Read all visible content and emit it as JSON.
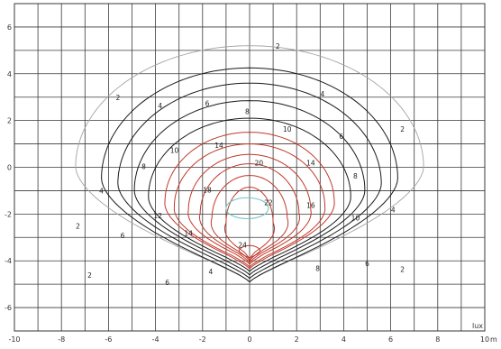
{
  "chart_data": {
    "type": "contour",
    "x_unit": "m",
    "value_unit": "lux",
    "xlim": [
      -10,
      10
    ],
    "ylim": [
      -7,
      7
    ],
    "grid": true,
    "xticks": [
      -10,
      -8,
      -6,
      -4,
      -2,
      0,
      2,
      4,
      6,
      8,
      10
    ],
    "yticks": [
      6,
      4,
      2,
      0,
      -2,
      -4,
      -6
    ],
    "source": [
      0,
      -4
    ],
    "levels": [
      2,
      4,
      6,
      8,
      10,
      12,
      14,
      16,
      18,
      20,
      22,
      24
    ],
    "level_colors": {
      "2": "#a3a3a3",
      "4": "#1a1a1a",
      "6": "#1a1a1a",
      "8": "#1a1a1a",
      "10": "#1a1a1a",
      "12": "#c0392b",
      "14": "#c0392b",
      "16": "#c0392b",
      "18": "#c0392b",
      "20": "#c0392b",
      "22": "#c0392b",
      "24": "#c0392b",
      "inner": "#6dc7c2"
    },
    "contours": [
      {
        "level": 2,
        "hw": 7.4,
        "top": 5.2,
        "bottom": -5.2,
        "kink": 0.15
      },
      {
        "level": 4,
        "hw": 6.3,
        "top": 4.25,
        "bottom": -5.2,
        "kink": 0.2
      },
      {
        "level": 6,
        "hw": 5.6,
        "top": 3.6,
        "bottom": -5.0,
        "kink": 0.25
      },
      {
        "level": 8,
        "hw": 4.9,
        "top": 2.85,
        "bottom": -4.8,
        "kink": 0.3
      },
      {
        "level": 10,
        "hw": 4.3,
        "top": 2.1,
        "bottom": -4.6,
        "kink": 0.35
      },
      {
        "level": 12,
        "hw": 3.6,
        "top": 1.5,
        "bottom": -4.45,
        "kink": 0.45
      },
      {
        "level": 14,
        "hw": 3.2,
        "top": 1.0,
        "bottom": -4.35,
        "kink": 0.5
      },
      {
        "level": 16,
        "hw": 2.6,
        "top": 0.55,
        "bottom": -4.2,
        "kink": 0.55
      },
      {
        "level": 18,
        "hw": 2.1,
        "top": 0.15,
        "bottom": -4.1,
        "kink": 0.6
      },
      {
        "level": 20,
        "hw": 1.6,
        "top": -0.35,
        "bottom": -4.0,
        "kink": 0.6
      },
      {
        "level": 22,
        "hw": 1.0,
        "top": -0.85,
        "bottom": -3.9,
        "kink": 0.55
      },
      {
        "level": 24,
        "hw": 0.45,
        "top": -3.35,
        "bottom": -3.85,
        "kink": 0.0
      }
    ],
    "inner_ellipse": {
      "cx": -0.1,
      "cy": -1.75,
      "rx": 0.9,
      "ry": 0.45
    },
    "labels": [
      {
        "text": "2",
        "x": 1.2,
        "y": 5.15
      },
      {
        "text": "2",
        "x": -5.6,
        "y": 2.95
      },
      {
        "text": "2",
        "x": 6.5,
        "y": 1.6
      },
      {
        "text": "2",
        "x": -7.3,
        "y": -2.55
      },
      {
        "text": "2",
        "x": 6.5,
        "y": -4.4
      },
      {
        "text": "2",
        "x": -6.8,
        "y": -4.65
      },
      {
        "text": "4",
        "x": 3.1,
        "y": 3.1
      },
      {
        "text": "4",
        "x": -3.8,
        "y": 2.6
      },
      {
        "text": "4",
        "x": -6.3,
        "y": -1.05
      },
      {
        "text": "4",
        "x": 6.1,
        "y": -1.85
      },
      {
        "text": "4",
        "x": -1.65,
        "y": -4.5
      },
      {
        "text": "6",
        "x": -1.8,
        "y": 2.7
      },
      {
        "text": "6",
        "x": 3.9,
        "y": 1.3
      },
      {
        "text": "6",
        "x": -5.4,
        "y": -2.95
      },
      {
        "text": "6",
        "x": 5.0,
        "y": -4.15
      },
      {
        "text": "6",
        "x": -3.5,
        "y": -4.95
      },
      {
        "text": "8",
        "x": -0.1,
        "y": 2.35
      },
      {
        "text": "8",
        "x": -4.5,
        "y": 0.0
      },
      {
        "text": "8",
        "x": 4.5,
        "y": -0.4
      },
      {
        "text": "8",
        "x": 2.9,
        "y": -4.35
      },
      {
        "text": "10",
        "x": 1.6,
        "y": 1.6
      },
      {
        "text": "10",
        "x": -3.2,
        "y": 0.7
      },
      {
        "text": "10",
        "x": 4.5,
        "y": -2.2
      },
      {
        "text": "12",
        "x": -3.9,
        "y": -2.1
      },
      {
        "text": "14",
        "x": -1.3,
        "y": 0.9
      },
      {
        "text": "14",
        "x": 2.6,
        "y": 0.15
      },
      {
        "text": "14",
        "x": -2.6,
        "y": -2.85
      },
      {
        "text": "16",
        "x": 2.6,
        "y": -1.65
      },
      {
        "text": "18",
        "x": -1.8,
        "y": -1.0
      },
      {
        "text": "20",
        "x": 0.4,
        "y": 0.15
      },
      {
        "text": "22",
        "x": 0.8,
        "y": -1.55
      },
      {
        "text": "24",
        "x": -0.3,
        "y": -3.35
      }
    ]
  }
}
